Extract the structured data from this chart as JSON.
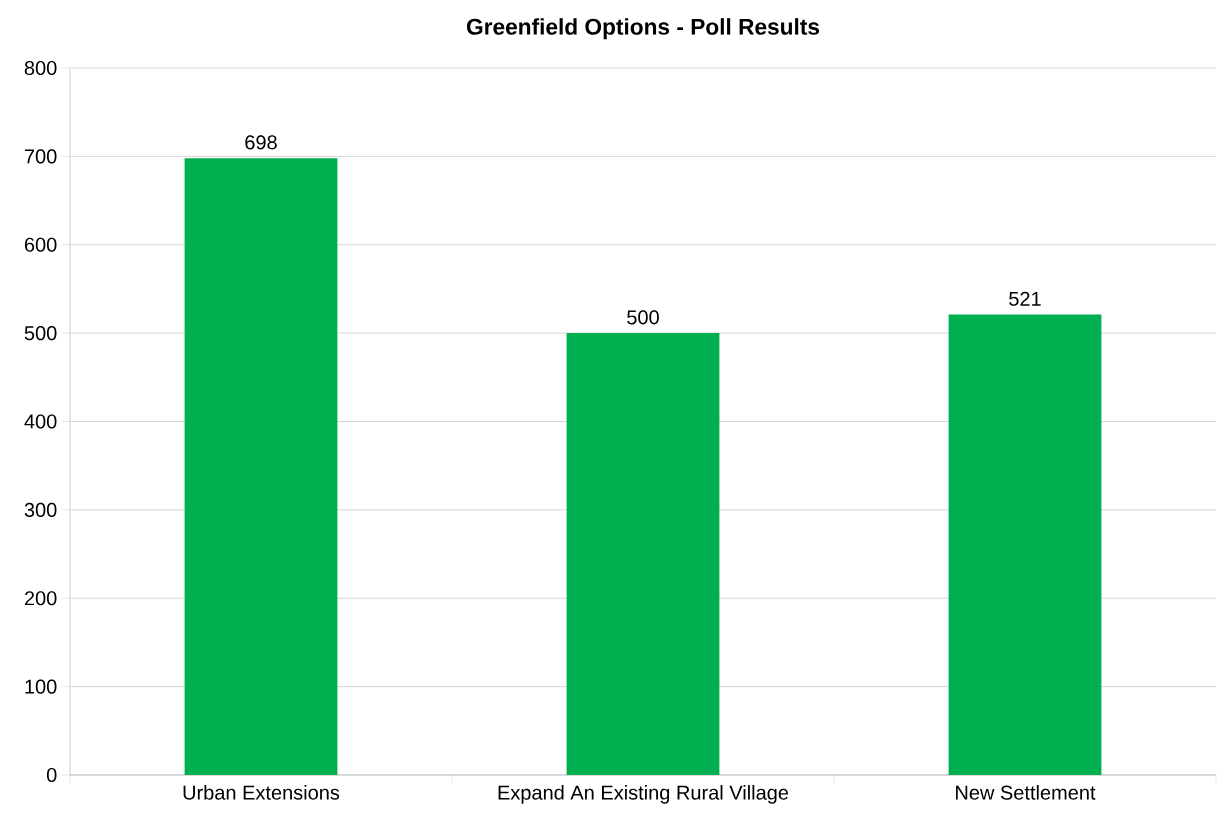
{
  "chart_data": {
    "type": "bar",
    "title": "Greenfield Options - Poll Results",
    "categories": [
      "Urban Extensions",
      "Expand An Existing Rural Village",
      "New Settlement"
    ],
    "values": [
      698,
      500,
      521
    ],
    "color": "#00b050",
    "ylim": [
      0,
      800
    ],
    "yticks": [
      0,
      100,
      200,
      300,
      400,
      500,
      600,
      700,
      800
    ],
    "grid": "y",
    "data_labels": true
  }
}
